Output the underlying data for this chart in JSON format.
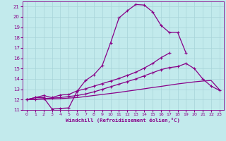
{
  "xlabel": "Windchill (Refroidissement éolien,°C)",
  "xlim": [
    -0.5,
    23.5
  ],
  "ylim": [
    11,
    21.5
  ],
  "xticks": [
    0,
    1,
    2,
    3,
    4,
    5,
    6,
    7,
    8,
    9,
    10,
    11,
    12,
    13,
    14,
    15,
    16,
    17,
    18,
    19,
    20,
    21,
    22,
    23
  ],
  "yticks": [
    11,
    12,
    13,
    14,
    15,
    16,
    17,
    18,
    19,
    20,
    21
  ],
  "background_color": "#c2eaec",
  "grid_color": "#a8d4d8",
  "line_color": "#880088",
  "curves": [
    {
      "x": [
        0,
        1,
        2,
        3,
        4,
        5,
        6,
        7,
        8,
        9,
        10,
        11,
        12,
        13,
        14,
        15,
        16,
        17,
        18,
        19
      ],
      "y": [
        12.0,
        12.2,
        12.2,
        11.1,
        11.15,
        11.2,
        12.8,
        13.85,
        14.4,
        15.3,
        17.5,
        19.9,
        20.6,
        21.2,
        21.15,
        20.5,
        19.2,
        18.5,
        18.5,
        16.5
      ],
      "marker": "+"
    },
    {
      "x": [
        0,
        1,
        2,
        3,
        4,
        5,
        6,
        7,
        8,
        9,
        10,
        11,
        12,
        13,
        14,
        15,
        16,
        17
      ],
      "y": [
        12.0,
        12.2,
        12.4,
        12.2,
        12.45,
        12.5,
        12.85,
        13.05,
        13.3,
        13.55,
        13.8,
        14.05,
        14.35,
        14.65,
        15.05,
        15.5,
        16.05,
        16.5
      ],
      "marker": "+"
    },
    {
      "x": [
        0,
        1,
        2,
        3,
        4,
        5,
        6,
        7,
        8,
        9,
        10,
        11,
        12,
        13,
        14,
        15,
        16,
        17,
        18,
        19,
        20,
        21,
        22,
        23
      ],
      "y": [
        12.0,
        12.05,
        12.1,
        12.15,
        12.2,
        12.3,
        12.4,
        12.55,
        12.75,
        13.0,
        13.25,
        13.5,
        13.75,
        14.0,
        14.3,
        14.6,
        14.9,
        15.1,
        15.2,
        15.5,
        15.0,
        14.0,
        13.3,
        12.9
      ],
      "marker": "+"
    },
    {
      "x": [
        0,
        1,
        2,
        3,
        4,
        5,
        6,
        7,
        8,
        9,
        10,
        11,
        12,
        13,
        14,
        15,
        16,
        17,
        18,
        19,
        20,
        21,
        22,
        23
      ],
      "y": [
        12.0,
        12.02,
        12.05,
        12.08,
        12.1,
        12.15,
        12.2,
        12.3,
        12.4,
        12.5,
        12.6,
        12.7,
        12.82,
        12.93,
        13.05,
        13.17,
        13.28,
        13.4,
        13.52,
        13.62,
        13.72,
        13.8,
        13.85,
        12.95
      ],
      "marker": null
    }
  ]
}
